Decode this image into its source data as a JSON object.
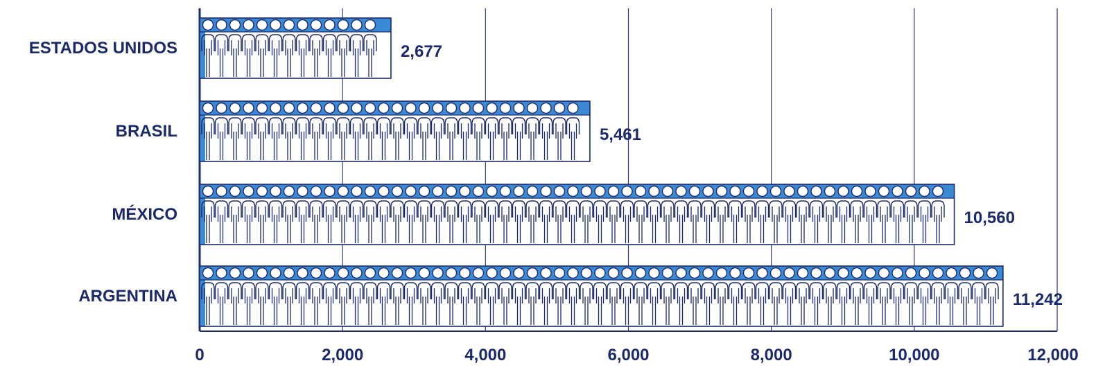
{
  "chart_data": {
    "type": "bar",
    "orientation": "horizontal",
    "categories": [
      "ESTADOS UNIDOS",
      "BRASIL",
      "MÉXICO",
      "ARGENTINA"
    ],
    "values": [
      2677,
      5461,
      10560,
      11242
    ],
    "value_labels": [
      "2,677",
      "5,461",
      "10,560",
      "11,242"
    ],
    "xticks": [
      0,
      2000,
      4000,
      6000,
      8000,
      10000,
      12000
    ],
    "xtick_labels": [
      "0",
      "2,000",
      "4,000",
      "6,000",
      "8,000",
      "10,000",
      "12,000"
    ],
    "xlim": [
      0,
      12000
    ],
    "grid": "vertical",
    "bar_style": "pictogram-people",
    "colors": {
      "bar_fill": "#3a8ad6",
      "outline": "#1b2a6b",
      "text": "#1b2a6b",
      "grid": "#2a3a78"
    }
  }
}
